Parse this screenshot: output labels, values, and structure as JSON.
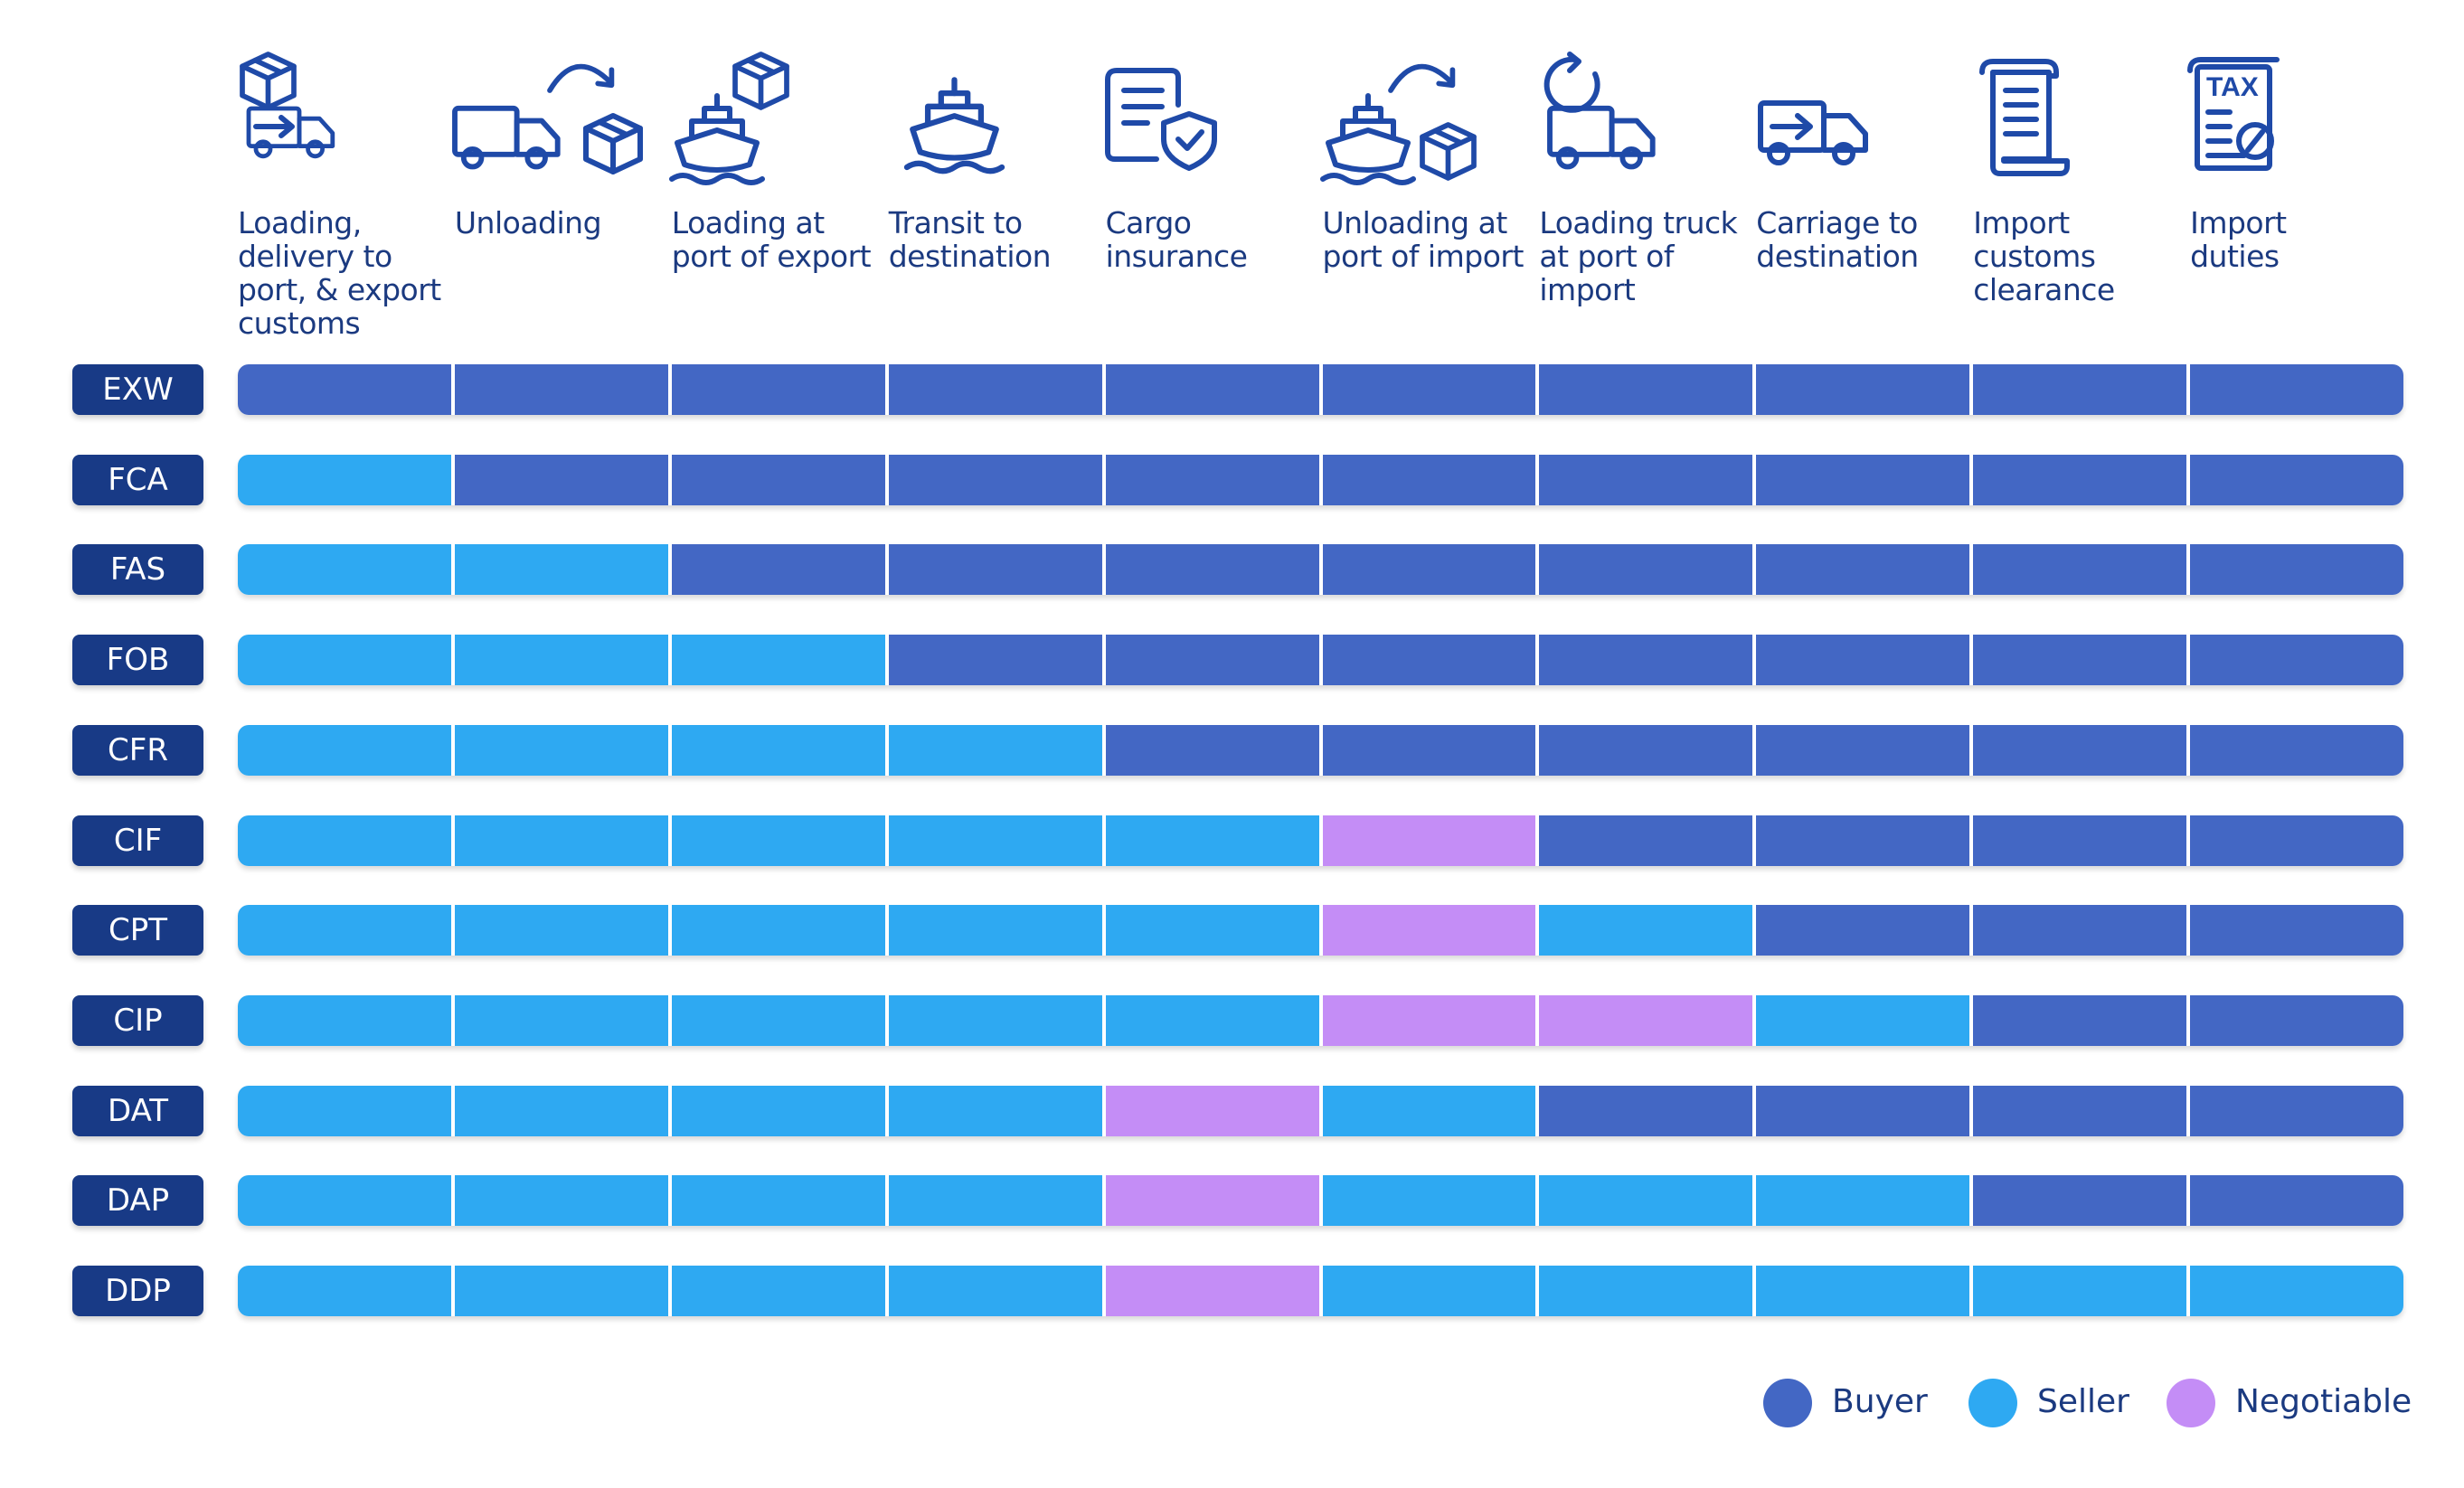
{
  "columns": [
    {
      "label": "Loading,\ndelivery to\nport, & export\ncustoms",
      "icon": "truck-with-box-icon"
    },
    {
      "label": "Unloading",
      "icon": "truck-unload-arrow-icon"
    },
    {
      "label": "Loading at\nport of export",
      "icon": "ship-with-box-icon"
    },
    {
      "label": "Transit to\ndestination",
      "icon": "ship-icon"
    },
    {
      "label": "Cargo\ninsurance",
      "icon": "document-shield-icon"
    },
    {
      "label": "Unloading at\nport of import",
      "icon": "ship-unload-arrow-icon"
    },
    {
      "label": "Loading truck\nat port of\nimport",
      "icon": "truck-reload-icon"
    },
    {
      "label": "Carriage to\ndestination",
      "icon": "truck-arrow-icon"
    },
    {
      "label": "Import\ncustoms\nclearance",
      "icon": "scroll-document-icon"
    },
    {
      "label": "Import\nduties",
      "icon": "tax-document-icon"
    }
  ],
  "colors": {
    "B": "#4367c4",
    "S": "#2ea9f2",
    "N": "#c48df6"
  },
  "rows": [
    {
      "term": "EXW",
      "cells": [
        "B",
        "B",
        "B",
        "B",
        "B",
        "B",
        "B",
        "B",
        "B",
        "B"
      ]
    },
    {
      "term": "FCA",
      "cells": [
        "S",
        "B",
        "B",
        "B",
        "B",
        "B",
        "B",
        "B",
        "B",
        "B"
      ]
    },
    {
      "term": "FAS",
      "cells": [
        "S",
        "S",
        "B",
        "B",
        "B",
        "B",
        "B",
        "B",
        "B",
        "B"
      ]
    },
    {
      "term": "FOB",
      "cells": [
        "S",
        "S",
        "S",
        "B",
        "B",
        "B",
        "B",
        "B",
        "B",
        "B"
      ]
    },
    {
      "term": "CFR",
      "cells": [
        "S",
        "S",
        "S",
        "S",
        "B",
        "B",
        "B",
        "B",
        "B",
        "B"
      ]
    },
    {
      "term": "CIF",
      "cells": [
        "S",
        "S",
        "S",
        "S",
        "S",
        "N",
        "B",
        "B",
        "B",
        "B"
      ]
    },
    {
      "term": "CPT",
      "cells": [
        "S",
        "S",
        "S",
        "S",
        "S",
        "N",
        "S",
        "B",
        "B",
        "B"
      ]
    },
    {
      "term": "CIP",
      "cells": [
        "S",
        "S",
        "S",
        "S",
        "S",
        "N",
        "N",
        "S",
        "B",
        "B"
      ]
    },
    {
      "term": "DAT",
      "cells": [
        "S",
        "S",
        "S",
        "S",
        "N",
        "S",
        "B",
        "B",
        "B",
        "B"
      ]
    },
    {
      "term": "DAP",
      "cells": [
        "S",
        "S",
        "S",
        "S",
        "N",
        "S",
        "S",
        "S",
        "B",
        "B"
      ]
    },
    {
      "term": "DDP",
      "cells": [
        "S",
        "S",
        "S",
        "S",
        "N",
        "S",
        "S",
        "S",
        "S",
        "S"
      ]
    }
  ],
  "legend": [
    {
      "key": "B",
      "label": "Buyer"
    },
    {
      "key": "S",
      "label": "Seller"
    },
    {
      "key": "N",
      "label": "Negotiable"
    }
  ]
}
